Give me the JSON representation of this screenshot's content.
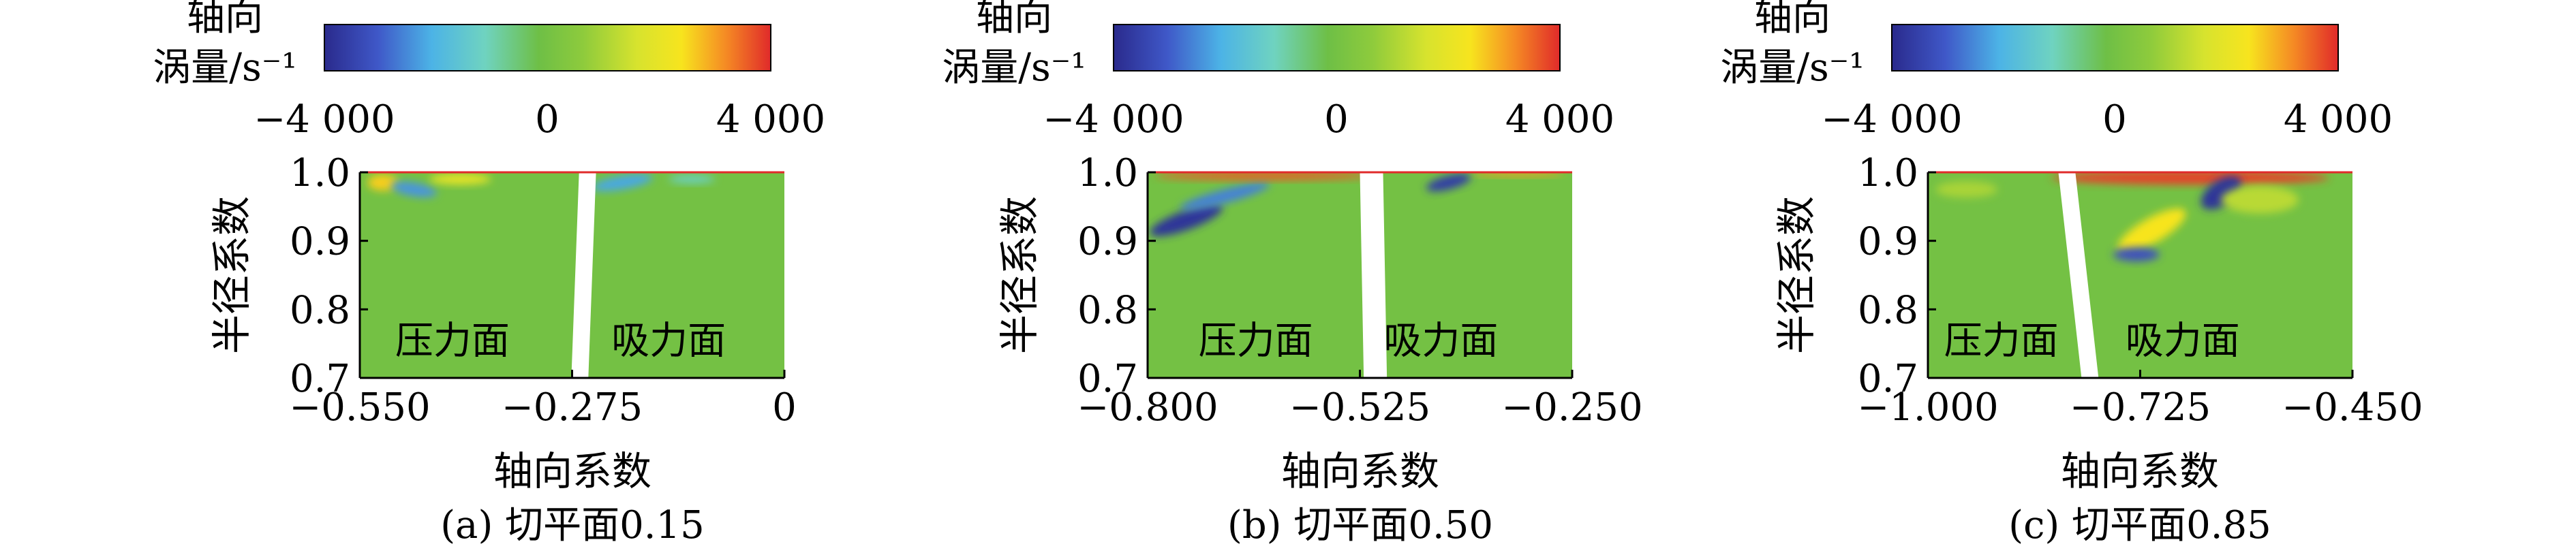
{
  "chart_data": [
    {
      "type": "heatmap",
      "caption": "(a) 切平面0.15",
      "colorbar": {
        "title_line1": "轴向",
        "title_line2": "涡量/s⁻¹",
        "ticks": [
          "−4 000",
          "0",
          "4 000"
        ],
        "min": -4000,
        "max": 4000
      },
      "xlabel": "轴向系数",
      "ylabel": "半径系数",
      "xlim": [
        -0.55,
        0
      ],
      "ylim": [
        0.7,
        1.0
      ],
      "xticks": [
        {
          "v": -0.55,
          "label": "−0.550"
        },
        {
          "v": -0.275,
          "label": "−0.275"
        },
        {
          "v": 0,
          "label": "0"
        }
      ],
      "yticks": [
        {
          "v": 0.7,
          "label": "0.7"
        },
        {
          "v": 0.8,
          "label": "0.8"
        },
        {
          "v": 0.9,
          "label": "0.9"
        },
        {
          "v": 1.0,
          "label": "1.0"
        }
      ],
      "regions": [
        {
          "label": "压力面",
          "x": -0.43,
          "y": 0.755
        },
        {
          "label": "吸力面",
          "x": -0.15,
          "y": 0.755
        }
      ],
      "blade": {
        "x_top": -0.255,
        "x_bottom": -0.265,
        "width": 0.022
      },
      "tip_features": [
        {
          "x": -0.52,
          "y": 0.985,
          "rx": 0.02,
          "ry": 0.012,
          "value": 2600,
          "rot": 0
        },
        {
          "x": -0.48,
          "y": 0.975,
          "rx": 0.03,
          "ry": 0.01,
          "value": -2400,
          "rot": 10
        },
        {
          "x": -0.42,
          "y": 0.99,
          "rx": 0.04,
          "ry": 0.008,
          "value": 2000,
          "rot": 0
        },
        {
          "x": -0.21,
          "y": 0.985,
          "rx": 0.04,
          "ry": 0.01,
          "value": -2200,
          "rot": -10
        },
        {
          "x": -0.12,
          "y": 0.99,
          "rx": 0.03,
          "ry": 0.006,
          "value": -1200,
          "rot": 0
        }
      ]
    },
    {
      "type": "heatmap",
      "caption": "(b) 切平面0.50",
      "colorbar": {
        "title_line1": "轴向",
        "title_line2": "涡量/s⁻¹",
        "ticks": [
          "−4 000",
          "0",
          "4 000"
        ],
        "min": -4000,
        "max": 4000
      },
      "xlabel": "轴向系数",
      "ylabel": "半径系数",
      "xlim": [
        -0.8,
        -0.25
      ],
      "ylim": [
        0.7,
        1.0
      ],
      "xticks": [
        {
          "v": -0.8,
          "label": "−0.800"
        },
        {
          "v": -0.525,
          "label": "−0.525"
        },
        {
          "v": -0.25,
          "label": "−0.250"
        }
      ],
      "yticks": [
        {
          "v": 0.7,
          "label": "0.7"
        },
        {
          "v": 0.8,
          "label": "0.8"
        },
        {
          "v": 0.9,
          "label": "0.9"
        },
        {
          "v": 1.0,
          "label": "1.0"
        }
      ],
      "regions": [
        {
          "label": "压力面",
          "x": -0.66,
          "y": 0.755
        },
        {
          "label": "吸力面",
          "x": -0.42,
          "y": 0.755
        }
      ],
      "blade": {
        "x_top": -0.51,
        "x_bottom": -0.505,
        "width": 0.03
      },
      "tip_features": [
        {
          "x": -0.75,
          "y": 0.93,
          "rx": 0.05,
          "ry": 0.014,
          "value": -3800,
          "rot": -20
        },
        {
          "x": -0.7,
          "y": 0.965,
          "rx": 0.06,
          "ry": 0.01,
          "value": -2600,
          "rot": -15
        },
        {
          "x": -0.65,
          "y": 0.995,
          "rx": 0.14,
          "ry": 0.006,
          "value": 3600,
          "rot": 0
        },
        {
          "x": -0.41,
          "y": 0.985,
          "rx": 0.03,
          "ry": 0.01,
          "value": -3600,
          "rot": -15
        },
        {
          "x": -0.32,
          "y": 0.998,
          "rx": 0.06,
          "ry": 0.004,
          "value": 3000,
          "rot": 0
        }
      ]
    },
    {
      "type": "heatmap",
      "caption": "(c) 切平面0.85",
      "colorbar": {
        "title_line1": "轴向",
        "title_line2": "涡量/s⁻¹",
        "ticks": [
          "−4 000",
          "0",
          "4 000"
        ],
        "min": -4000,
        "max": 4000
      },
      "xlabel": "轴向系数",
      "ylabel": "半径系数",
      "xlim": [
        -1.0,
        -0.45
      ],
      "ylim": [
        0.7,
        1.0
      ],
      "xticks": [
        {
          "v": -1.0,
          "label": "−1.000"
        },
        {
          "v": -0.725,
          "label": "−0.725"
        },
        {
          "v": -0.45,
          "label": "−0.450"
        }
      ],
      "yticks": [
        {
          "v": 0.7,
          "label": "0.7"
        },
        {
          "v": 0.8,
          "label": "0.8"
        },
        {
          "v": 0.9,
          "label": "0.9"
        },
        {
          "v": 1.0,
          "label": "1.0"
        }
      ],
      "regions": [
        {
          "label": "压力面",
          "x": -0.905,
          "y": 0.755
        },
        {
          "label": "吸力面",
          "x": -0.67,
          "y": 0.755
        }
      ],
      "blade": {
        "x_top": -0.82,
        "x_bottom": -0.79,
        "width": 0.022
      },
      "tip_features": [
        {
          "x": -0.66,
          "y": 0.992,
          "rx": 0.18,
          "ry": 0.01,
          "value": 3800,
          "rot": 0
        },
        {
          "x": -0.62,
          "y": 0.97,
          "rx": 0.03,
          "ry": 0.018,
          "value": -3800,
          "rot": -35
        },
        {
          "x": -0.71,
          "y": 0.915,
          "rx": 0.05,
          "ry": 0.018,
          "value": 2400,
          "rot": -30
        },
        {
          "x": -0.73,
          "y": 0.88,
          "rx": 0.03,
          "ry": 0.01,
          "value": -3200,
          "rot": 0
        },
        {
          "x": -0.57,
          "y": 0.96,
          "rx": 0.05,
          "ry": 0.02,
          "value": 1200,
          "rot": 0
        },
        {
          "x": -0.95,
          "y": 0.975,
          "rx": 0.04,
          "ry": 0.012,
          "value": 1000,
          "rot": 0
        }
      ]
    }
  ]
}
